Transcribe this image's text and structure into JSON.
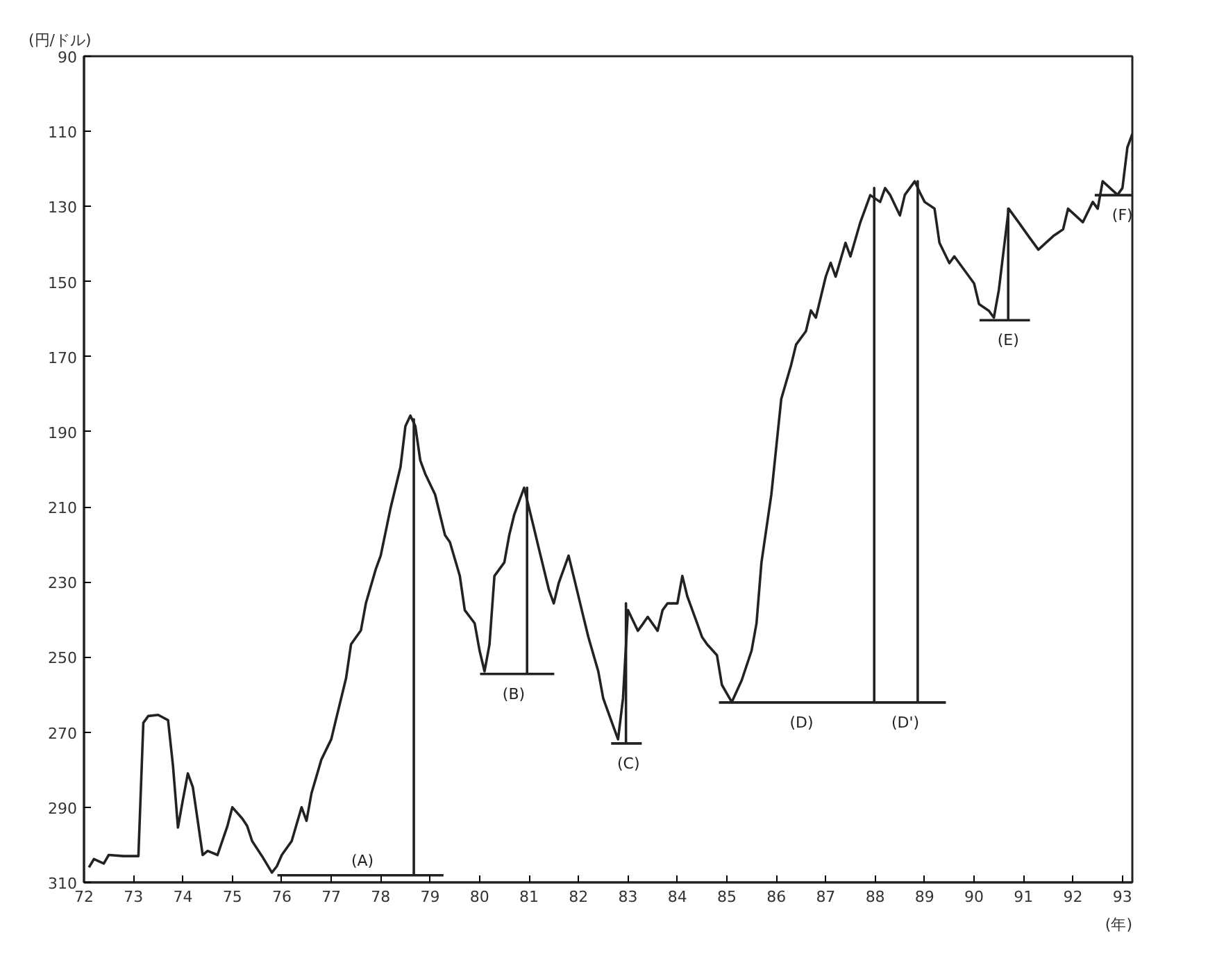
{
  "chart_data": {
    "type": "line",
    "ylabel": "(円/ドル)",
    "xlabel": "(年)",
    "xlim": [
      72,
      93.2
    ],
    "ylim": [
      310,
      90
    ],
    "xticks": [
      72,
      73,
      74,
      75,
      76,
      77,
      78,
      79,
      80,
      81,
      82,
      83,
      84,
      85,
      86,
      87,
      88,
      89,
      90,
      91,
      92,
      93
    ],
    "yticks": [
      90,
      110,
      130,
      150,
      170,
      190,
      210,
      230,
      250,
      270,
      290,
      310
    ],
    "grid": false,
    "marker": "none",
    "line_style": "solid",
    "series": [
      {
        "color": "#222222",
        "x": [
          72.1,
          72.2,
          72.4,
          72.5,
          72.8,
          73.0,
          73.1,
          73.2,
          73.3,
          73.5,
          73.7,
          73.8,
          73.9,
          74.0,
          74.1,
          74.2,
          74.3,
          74.4,
          74.5,
          74.7,
          74.9,
          75.0,
          75.2,
          75.3,
          75.4,
          75.6,
          75.8,
          75.9,
          76.0,
          76.2,
          76.4,
          76.5,
          76.6,
          76.8,
          77.0,
          77.1,
          77.3,
          77.4,
          77.6,
          77.7,
          77.9,
          78.0,
          78.2,
          78.4,
          78.5,
          78.6,
          78.7,
          78.8,
          78.9,
          79.1,
          79.2,
          79.3,
          79.4,
          79.6,
          79.7,
          79.9,
          80.0,
          80.1,
          80.2,
          80.3,
          80.5,
          80.6,
          80.7,
          80.9,
          81.0,
          81.1,
          81.2,
          81.4,
          81.5,
          81.6,
          81.8,
          81.9,
          82.1,
          82.2,
          82.4,
          82.5,
          82.7,
          82.8,
          82.9,
          83.0,
          83.2,
          83.3,
          83.4,
          83.6,
          83.7,
          83.8,
          84.0,
          84.1,
          84.2,
          84.4,
          84.5,
          84.6,
          84.8,
          84.9,
          85.1,
          85.3,
          85.5,
          85.6,
          85.7,
          85.9,
          86.0,
          86.1,
          86.3,
          86.4,
          86.6,
          86.7,
          86.8,
          87.0,
          87.1,
          87.2,
          87.4,
          87.5,
          87.7,
          87.8,
          87.9,
          88.1,
          88.2,
          88.3,
          88.5,
          88.6,
          88.8,
          88.9,
          89.0,
          89.2,
          89.3,
          89.5,
          89.6,
          89.7,
          90.0,
          90.1,
          90.3,
          90.4,
          90.5,
          90.7,
          90.8,
          90.9,
          91.1,
          91.3,
          91.6,
          91.8,
          91.9,
          92.2,
          92.4,
          92.5,
          92.6,
          92.9,
          93.0,
          93.1,
          93.2
        ],
        "values": [
          306,
          303.8,
          305,
          302.7,
          303,
          303,
          303,
          267.5,
          265.7,
          265.4,
          266.8,
          279,
          295.4,
          288,
          281,
          284.6,
          293.6,
          302.7,
          301.6,
          302.7,
          295,
          290,
          293,
          295,
          299,
          303,
          307.4,
          305.7,
          302.7,
          299,
          290,
          293.6,
          286.3,
          277.3,
          271.9,
          266.4,
          255.6,
          246.6,
          242.9,
          235.7,
          226.6,
          223,
          210.3,
          199.4,
          188.5,
          185.7,
          188.5,
          197.6,
          201.2,
          206.7,
          212.1,
          217.5,
          219.4,
          228.4,
          237.5,
          241,
          248.3,
          253.8,
          246.6,
          228.4,
          224.8,
          217.5,
          212.1,
          204.9,
          210.3,
          215.7,
          221.2,
          232,
          235.7,
          230.3,
          223,
          228.4,
          239.3,
          244.7,
          253.8,
          261,
          268.3,
          271.9,
          261,
          237.5,
          243,
          241.2,
          239.3,
          243,
          237.5,
          235.7,
          235.7,
          228.4,
          233.8,
          241,
          244.7,
          246.6,
          249.5,
          257.4,
          262,
          256.2,
          248.3,
          241,
          224.8,
          206.7,
          194,
          181.3,
          172.2,
          166.8,
          163.2,
          157.7,
          159.6,
          148.7,
          145,
          148.7,
          139.7,
          143.3,
          134.2,
          130.6,
          127,
          128.8,
          125.1,
          126.9,
          132.4,
          126.9,
          123.3,
          126.2,
          128.8,
          130.6,
          139.7,
          145.1,
          143.3,
          145.1,
          150.5,
          156,
          157.8,
          159.6,
          152.3,
          130.6,
          132.4,
          134.2,
          137.9,
          141.5,
          137.9,
          136.1,
          130.6,
          134.2,
          128.8,
          130.6,
          123.3,
          126.9,
          125.1,
          114.3,
          110.7
        ]
      },
      {
        "color": "#222222",
        "x": [
          75.91,
          78.67,
          78.67,
          78.67,
          79.27
        ],
        "values": [
          308.1,
          308.1,
          186.7,
          308.1,
          308.1
        ]
      },
      {
        "color": "#222222",
        "x": [
          80.01,
          80.96,
          80.96,
          80.96,
          81.51
        ],
        "values": [
          254.5,
          254.5,
          204.9,
          254.5,
          254.5
        ]
      },
      {
        "color": "#222222",
        "x": [
          82.66,
          82.96,
          82.96,
          82.96,
          83.28
        ],
        "values": [
          273,
          273,
          235.7,
          273,
          273
        ]
      },
      {
        "color": "#222222",
        "x": [
          84.84,
          87.98,
          87.98,
          87.98,
          88.86,
          88.86,
          88.86,
          89.43
        ],
        "values": [
          262.1,
          262.1,
          125.1,
          262.1,
          262.1,
          123.3,
          262.1,
          262.1
        ]
      },
      {
        "color": "#222222",
        "x": [
          90.11,
          90.69,
          90.69,
          90.69,
          91.13
        ],
        "values": [
          160.3,
          160.3,
          130.6,
          160.3,
          160.3
        ]
      },
      {
        "color": "#222222",
        "x": [
          92.44,
          93.2
        ],
        "values": [
          127,
          127
        ]
      }
    ],
    "annotations": [
      {
        "text": "(A)",
        "x": 77.63,
        "y": 308.1
      },
      {
        "text": "(B)",
        "x": 80.69,
        "y": 254.5
      },
      {
        "text": "(C)",
        "x": 83.01,
        "y": 273
      },
      {
        "text": "(D)",
        "x": 86.51,
        "y": 262.1
      },
      {
        "text": "(D')",
        "x": 88.61,
        "y": 262.1
      },
      {
        "text": "(E)",
        "x": 90.69,
        "y": 160.3
      },
      {
        "text": "(F)",
        "x": 93.0,
        "y": 127
      }
    ]
  }
}
